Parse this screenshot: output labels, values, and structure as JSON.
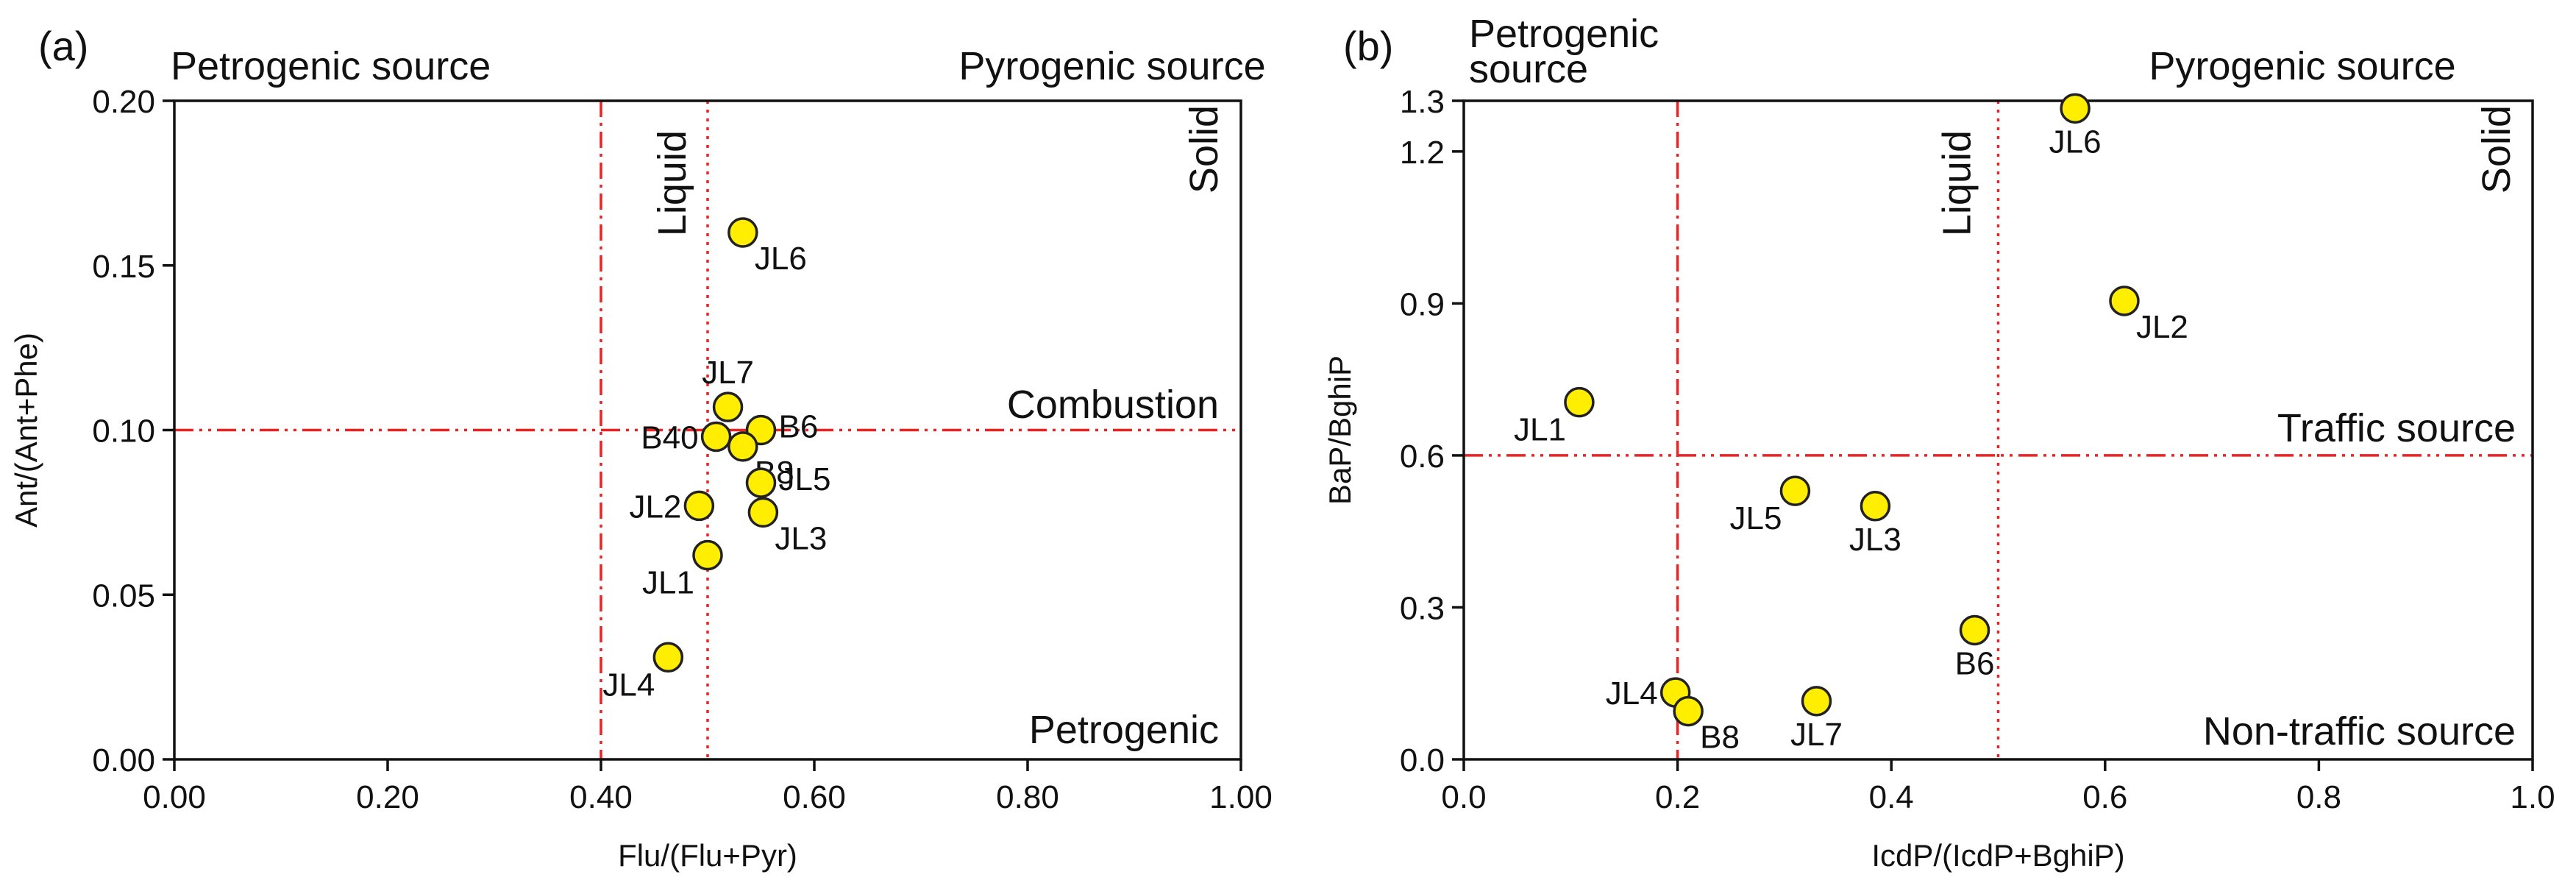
{
  "figure": {
    "style": {
      "marker_fill": "#ffee00",
      "marker_stroke": "#222222",
      "threshold_color": "#ee2222",
      "axis_color": "#111111"
    }
  },
  "chart_data": [
    {
      "type": "scatter",
      "panel_label": "(a)",
      "xlabel": "Flu/(Flu+Pyr)",
      "ylabel": "Ant/(Ant+Phe)",
      "xlim": [
        0,
        1.0
      ],
      "ylim": [
        0,
        0.2
      ],
      "xticks": [
        "0.00",
        "0.20",
        "0.40",
        "0.60",
        "0.80",
        "1.00"
      ],
      "xtick_values": [
        0,
        0.2,
        0.4,
        0.6,
        0.8,
        1.0
      ],
      "yticks": [
        "0.00",
        "0.05",
        "0.10",
        "0.15",
        "0.20"
      ],
      "ytick_values": [
        0,
        0.05,
        0.1,
        0.15,
        0.2
      ],
      "thresholds": [
        {
          "axis": "x",
          "value": 0.4,
          "style": "dashdot"
        },
        {
          "axis": "x",
          "value": 0.5,
          "style": "dotted"
        },
        {
          "axis": "y",
          "value": 0.1,
          "style": "dashdotdot"
        }
      ],
      "region_labels": {
        "top_left": "Petrogenic source",
        "top_right": "Pyrogenic source",
        "vertical_mid": "Liquid",
        "vertical_right": "Solid",
        "mid_right": "Combustion",
        "bottom_right": "Petrogenic"
      },
      "points": [
        {
          "label": "JL6",
          "x": 0.533,
          "y": 0.16,
          "label_pos": "below-right"
        },
        {
          "label": "JL7",
          "x": 0.519,
          "y": 0.107,
          "label_pos": "above"
        },
        {
          "label": "B6",
          "x": 0.55,
          "y": 0.1,
          "label_pos": "right"
        },
        {
          "label": "B40",
          "x": 0.508,
          "y": 0.098,
          "label_pos": "left"
        },
        {
          "label": "B8",
          "x": 0.533,
          "y": 0.095,
          "label_pos": "below-right"
        },
        {
          "label": "JL5",
          "x": 0.55,
          "y": 0.084,
          "label_pos": "right"
        },
        {
          "label": "JL3",
          "x": 0.552,
          "y": 0.075,
          "label_pos": "below-right"
        },
        {
          "label": "JL2",
          "x": 0.492,
          "y": 0.077,
          "label_pos": "left"
        },
        {
          "label": "JL1",
          "x": 0.5,
          "y": 0.062,
          "label_pos": "below-left"
        },
        {
          "label": "JL4",
          "x": 0.463,
          "y": 0.031,
          "label_pos": "below-left"
        }
      ]
    },
    {
      "type": "scatter",
      "panel_label": "(b)",
      "xlabel": "IcdP/(IcdP+BghiP)",
      "ylabel": "BaP/BghiP",
      "xlim": [
        0,
        1.0
      ],
      "ylim": [
        0,
        1.3
      ],
      "xticks": [
        "0.0",
        "0.2",
        "0.4",
        "0.6",
        "0.8",
        "1.0"
      ],
      "xtick_values": [
        0,
        0.2,
        0.4,
        0.6,
        0.8,
        1.0
      ],
      "yticks": [
        "0.0",
        "0.3",
        "0.6",
        "0.9",
        "1.2",
        "1.3"
      ],
      "ytick_values": [
        0,
        0.3,
        0.6,
        0.9,
        1.2,
        1.3
      ],
      "thresholds": [
        {
          "axis": "x",
          "value": 0.2,
          "style": "dashdot"
        },
        {
          "axis": "x",
          "value": 0.5,
          "style": "dotted"
        },
        {
          "axis": "y",
          "value": 0.6,
          "style": "dashdotdot"
        }
      ],
      "region_labels": {
        "top_left": "Petrogenic\nsource",
        "top_right": "Pyrogenic source",
        "vertical_mid": "Liquid",
        "vertical_right": "Solid",
        "mid_right": "Traffic source",
        "bottom_right": "Non-traffic source"
      },
      "points": [
        {
          "label": "JL6",
          "x": 0.572,
          "y": 1.285,
          "label_pos": "below"
        },
        {
          "label": "JL2",
          "x": 0.618,
          "y": 0.905,
          "label_pos": "below-right"
        },
        {
          "label": "JL1",
          "x": 0.108,
          "y": 0.705,
          "label_pos": "below-left"
        },
        {
          "label": "JL5",
          "x": 0.31,
          "y": 0.53,
          "label_pos": "below-left"
        },
        {
          "label": "JL3",
          "x": 0.385,
          "y": 0.5,
          "label_pos": "below"
        },
        {
          "label": "B6",
          "x": 0.478,
          "y": 0.255,
          "label_pos": "below"
        },
        {
          "label": "JL4",
          "x": 0.198,
          "y": 0.132,
          "label_pos": "left"
        },
        {
          "label": "B8",
          "x": 0.21,
          "y": 0.095,
          "label_pos": "below-right"
        },
        {
          "label": "JL7",
          "x": 0.33,
          "y": 0.115,
          "label_pos": "below"
        }
      ]
    }
  ]
}
